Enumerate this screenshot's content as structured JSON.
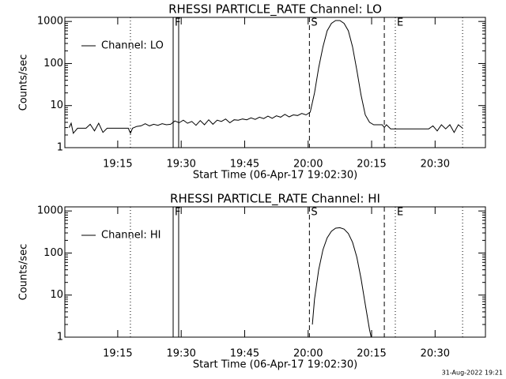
{
  "chart_data": [
    {
      "type": "line",
      "title": "RHESSI PARTICLE_RATE Channel: LO",
      "x_label": "Start Time (06-Apr-17 19:02:30)",
      "y_label": "Counts/sec",
      "log_y": true,
      "legend": "upper left",
      "xlim": [
        0,
        99.4
      ],
      "ylim": [
        1,
        1250
      ],
      "xticks": [
        {
          "value": 12.5,
          "label": "19:15"
        },
        {
          "value": 27.5,
          "label": "19:30"
        },
        {
          "value": 42.5,
          "label": "19:45"
        },
        {
          "value": 57.5,
          "label": "20:00"
        },
        {
          "value": 72.5,
          "label": "20:15"
        },
        {
          "value": 87.5,
          "label": "20:30"
        }
      ],
      "yticks": [
        1,
        10,
        100,
        1000
      ],
      "minor_yticks": [
        2,
        3,
        4,
        5,
        6,
        7,
        8,
        9,
        20,
        30,
        40,
        50,
        60,
        70,
        80,
        90,
        200,
        300,
        400,
        500,
        600,
        700,
        800,
        900
      ],
      "markers": [
        {
          "x": 15.5,
          "style": "dotted"
        },
        {
          "x": 25.6,
          "style": "solid",
          "label": "F"
        },
        {
          "x": 26.9,
          "style": "solid"
        },
        {
          "x": 57.8,
          "style": "dashed",
          "label": "S"
        },
        {
          "x": 75.5,
          "style": "dashed"
        },
        {
          "x": 78.1,
          "style": "dotted",
          "label": "E"
        },
        {
          "x": 94,
          "style": "dotted"
        }
      ],
      "x": [
        1,
        1.5,
        2,
        3,
        4,
        5,
        6,
        7,
        8,
        9,
        10,
        11,
        12,
        13,
        14,
        15,
        15.5,
        16,
        17,
        18,
        19,
        20,
        21,
        22,
        23,
        24,
        25,
        26,
        27,
        28,
        29,
        30,
        31,
        32,
        33,
        34,
        35,
        36,
        37,
        38,
        39,
        40,
        41,
        42,
        43,
        44,
        45,
        46,
        47,
        48,
        49,
        50,
        51,
        52,
        53,
        54,
        55,
        56,
        57,
        58,
        59,
        60,
        61,
        62,
        63,
        64,
        65,
        66,
        67,
        68,
        69,
        70,
        71,
        72,
        73,
        74,
        75,
        75.5,
        76,
        77,
        78,
        79,
        80,
        81,
        82,
        83,
        84,
        85,
        86,
        87,
        88,
        89,
        90,
        91,
        92,
        93,
        94
      ],
      "series": [
        {
          "name": "Channel: LO",
          "color": "#000000",
          "values": [
            3.0,
            3.8,
            2.2,
            2.9,
            2.9,
            2.9,
            3.6,
            2.5,
            3.8,
            2.3,
            2.9,
            2.9,
            2.9,
            2.9,
            2.9,
            2.9,
            2.2,
            2.9,
            3.2,
            3.3,
            3.7,
            3.3,
            3.6,
            3.4,
            3.7,
            3.5,
            3.6,
            4.3,
            3.9,
            4.5,
            3.8,
            4.2,
            3.4,
            4.4,
            3.5,
            4.6,
            3.6,
            4.5,
            4.2,
            4.8,
            3.9,
            4.6,
            4.5,
            4.8,
            4.6,
            5.1,
            4.7,
            5.3,
            4.9,
            5.6,
            5.0,
            5.7,
            5.3,
            6.2,
            5.4,
            6.0,
            5.8,
            6.5,
            6.0,
            7.0,
            20,
            80,
            250,
            600,
            900,
            1050,
            1050,
            900,
            600,
            250,
            70,
            18,
            6,
            4.0,
            3.5,
            3.5,
            3.5,
            3.0,
            3.5,
            2.8,
            2.8,
            2.8,
            2.8,
            2.8,
            2.8,
            2.8,
            2.8,
            2.8,
            2.8,
            3.3,
            2.5,
            3.5,
            2.8,
            3.5,
            2.3,
            3.5,
            2.9
          ]
        }
      ]
    },
    {
      "type": "line",
      "title": "RHESSI PARTICLE_RATE Channel: HI",
      "x_label": "Start Time (06-Apr-17 19:02:30)",
      "y_label": "Counts/sec",
      "log_y": true,
      "legend": "upper left",
      "xlim": [
        0,
        99.4
      ],
      "ylim": [
        1,
        1250
      ],
      "xticks": [
        {
          "value": 12.5,
          "label": "19:15"
        },
        {
          "value": 27.5,
          "label": "19:30"
        },
        {
          "value": 42.5,
          "label": "19:45"
        },
        {
          "value": 57.5,
          "label": "20:00"
        },
        {
          "value": 72.5,
          "label": "20:15"
        },
        {
          "value": 87.5,
          "label": "20:30"
        }
      ],
      "yticks": [
        1,
        10,
        100,
        1000
      ],
      "minor_yticks": [
        2,
        3,
        4,
        5,
        6,
        7,
        8,
        9,
        20,
        30,
        40,
        50,
        60,
        70,
        80,
        90,
        200,
        300,
        400,
        500,
        600,
        700,
        800,
        900
      ],
      "markers": [
        {
          "x": 15.5,
          "style": "dotted"
        },
        {
          "x": 25.6,
          "style": "solid",
          "label": "F"
        },
        {
          "x": 26.9,
          "style": "solid"
        },
        {
          "x": 57.8,
          "style": "dashed",
          "label": "S"
        },
        {
          "x": 75.5,
          "style": "dashed"
        },
        {
          "x": 78.1,
          "style": "dotted",
          "label": "E"
        },
        {
          "x": 94,
          "style": "dotted"
        }
      ],
      "x": [
        58.5,
        59,
        60,
        61,
        62,
        63,
        64,
        65,
        66,
        67,
        68,
        69,
        70,
        71,
        72,
        72.4
      ],
      "series": [
        {
          "name": "Channel: HI",
          "color": "#000000",
          "values": [
            2,
            8,
            40,
            120,
            230,
            330,
            390,
            400,
            370,
            290,
            180,
            80,
            25,
            6,
            1.5,
            1
          ]
        }
      ]
    }
  ],
  "footer": "31-Aug-2022 19:21"
}
